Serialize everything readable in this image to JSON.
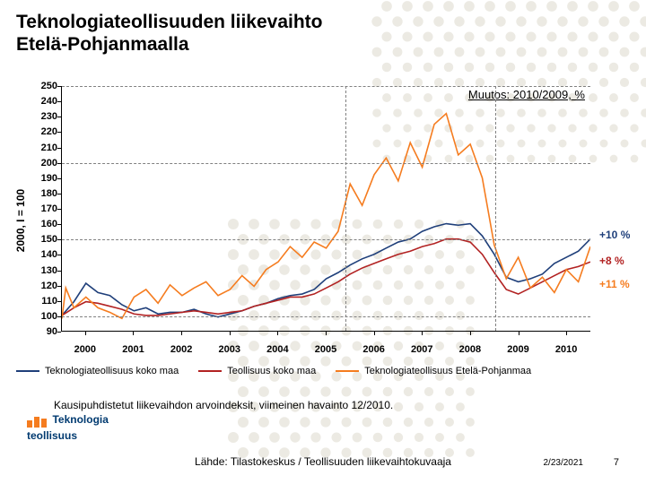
{
  "title_line1": "Teknologiateollisuuden liikevaihto",
  "title_line2": "Etelä-Pohjanmaalla",
  "change_header": "Muutos: 2010/2009, %",
  "y_axis_title": "2000, I = 100",
  "chart": {
    "type": "line",
    "x_start_year": 2000,
    "x_end_year": 2011,
    "x_ticks": [
      "2000",
      "2001",
      "2002",
      "2003",
      "2004",
      "2005",
      "2006",
      "2007",
      "2008",
      "2009",
      "2010"
    ],
    "ylim": [
      90,
      250
    ],
    "y_ticks": [
      90,
      100,
      110,
      120,
      130,
      140,
      150,
      160,
      170,
      180,
      190,
      200,
      210,
      220,
      230,
      240,
      250
    ],
    "hgrid_values": [
      100,
      150,
      200,
      250
    ],
    "vgrid_at_years": [
      2005.9,
      2009.0
    ],
    "background_color": "#ffffff",
    "grid_color": "#808080",
    "axis_color": "#000000",
    "tick_font_size": 11,
    "series": [
      {
        "id": "tekno_koko",
        "label": "Teknologiateollisuus koko maa",
        "color": "#1f3f7a",
        "width": 1.6,
        "annot_label": "+10 %",
        "annot_color": "#1f3f7a",
        "annot_y": 153,
        "data": [
          [
            2000.0,
            100
          ],
          [
            2000.25,
            109
          ],
          [
            2000.5,
            121
          ],
          [
            2000.75,
            115
          ],
          [
            2001.0,
            113
          ],
          [
            2001.25,
            107
          ],
          [
            2001.5,
            103
          ],
          [
            2001.75,
            105
          ],
          [
            2002.0,
            101
          ],
          [
            2002.25,
            102
          ],
          [
            2002.5,
            102
          ],
          [
            2002.75,
            104
          ],
          [
            2003.0,
            101
          ],
          [
            2003.25,
            99
          ],
          [
            2003.5,
            101
          ],
          [
            2003.75,
            103
          ],
          [
            2004.0,
            106
          ],
          [
            2004.25,
            108
          ],
          [
            2004.5,
            111
          ],
          [
            2004.75,
            113
          ],
          [
            2005.0,
            114
          ],
          [
            2005.25,
            117
          ],
          [
            2005.5,
            124
          ],
          [
            2005.75,
            128
          ],
          [
            2006.0,
            133
          ],
          [
            2006.25,
            137
          ],
          [
            2006.5,
            140
          ],
          [
            2006.75,
            144
          ],
          [
            2007.0,
            148
          ],
          [
            2007.25,
            150
          ],
          [
            2007.5,
            155
          ],
          [
            2007.75,
            158
          ],
          [
            2008.0,
            160
          ],
          [
            2008.25,
            159
          ],
          [
            2008.5,
            160
          ],
          [
            2008.75,
            152
          ],
          [
            2009.0,
            140
          ],
          [
            2009.25,
            125
          ],
          [
            2009.5,
            122
          ],
          [
            2009.75,
            124
          ],
          [
            2010.0,
            127
          ],
          [
            2010.25,
            134
          ],
          [
            2010.5,
            138
          ],
          [
            2010.75,
            142
          ],
          [
            2011.0,
            150
          ]
        ]
      },
      {
        "id": "teoll_koko",
        "label": "Teollisuus koko maa",
        "color": "#b22222",
        "width": 1.6,
        "annot_label": "+8 %",
        "annot_color": "#b22222",
        "annot_y": 136,
        "data": [
          [
            2000.0,
            100
          ],
          [
            2000.25,
            105
          ],
          [
            2000.5,
            109
          ],
          [
            2000.75,
            108
          ],
          [
            2001.0,
            106
          ],
          [
            2001.25,
            104
          ],
          [
            2001.5,
            101
          ],
          [
            2001.75,
            100
          ],
          [
            2002.0,
            100
          ],
          [
            2002.25,
            101
          ],
          [
            2002.5,
            102
          ],
          [
            2002.75,
            103
          ],
          [
            2003.0,
            102
          ],
          [
            2003.25,
            101
          ],
          [
            2003.5,
            102
          ],
          [
            2003.75,
            103
          ],
          [
            2004.0,
            106
          ],
          [
            2004.25,
            108
          ],
          [
            2004.5,
            110
          ],
          [
            2004.75,
            112
          ],
          [
            2005.0,
            112
          ],
          [
            2005.25,
            114
          ],
          [
            2005.5,
            118
          ],
          [
            2005.75,
            122
          ],
          [
            2006.0,
            127
          ],
          [
            2006.25,
            131
          ],
          [
            2006.5,
            134
          ],
          [
            2006.75,
            137
          ],
          [
            2007.0,
            140
          ],
          [
            2007.25,
            142
          ],
          [
            2007.5,
            145
          ],
          [
            2007.75,
            147
          ],
          [
            2008.0,
            150
          ],
          [
            2008.25,
            150
          ],
          [
            2008.5,
            148
          ],
          [
            2008.75,
            140
          ],
          [
            2009.0,
            128
          ],
          [
            2009.25,
            117
          ],
          [
            2009.5,
            114
          ],
          [
            2009.75,
            118
          ],
          [
            2010.0,
            122
          ],
          [
            2010.25,
            126
          ],
          [
            2010.5,
            130
          ],
          [
            2010.75,
            132
          ],
          [
            2011.0,
            135
          ]
        ]
      },
      {
        "id": "tekno_ep",
        "label": "Teknologiateollisuus Etelä-Pohjanmaa",
        "color": "#f57c1f",
        "width": 1.6,
        "annot_label": "+11 %",
        "annot_color": "#f57c1f",
        "annot_y": 121,
        "data": [
          [
            2000.0,
            98
          ],
          [
            2000.08,
            118
          ],
          [
            2000.25,
            105
          ],
          [
            2000.5,
            112
          ],
          [
            2000.75,
            105
          ],
          [
            2001.0,
            102
          ],
          [
            2001.25,
            98
          ],
          [
            2001.5,
            112
          ],
          [
            2001.75,
            117
          ],
          [
            2002.0,
            108
          ],
          [
            2002.25,
            120
          ],
          [
            2002.5,
            113
          ],
          [
            2002.75,
            118
          ],
          [
            2003.0,
            122
          ],
          [
            2003.25,
            113
          ],
          [
            2003.5,
            117
          ],
          [
            2003.75,
            126
          ],
          [
            2004.0,
            119
          ],
          [
            2004.25,
            130
          ],
          [
            2004.5,
            135
          ],
          [
            2004.75,
            145
          ],
          [
            2005.0,
            138
          ],
          [
            2005.25,
            148
          ],
          [
            2005.5,
            144
          ],
          [
            2005.75,
            155
          ],
          [
            2006.0,
            186
          ],
          [
            2006.25,
            172
          ],
          [
            2006.5,
            192
          ],
          [
            2006.75,
            203
          ],
          [
            2007.0,
            188
          ],
          [
            2007.25,
            213
          ],
          [
            2007.5,
            197
          ],
          [
            2007.75,
            225
          ],
          [
            2008.0,
            232
          ],
          [
            2008.25,
            205
          ],
          [
            2008.5,
            212
          ],
          [
            2008.75,
            190
          ],
          [
            2009.0,
            146
          ],
          [
            2009.25,
            124
          ],
          [
            2009.5,
            138
          ],
          [
            2009.75,
            118
          ],
          [
            2010.0,
            125
          ],
          [
            2010.25,
            115
          ],
          [
            2010.5,
            130
          ],
          [
            2010.75,
            122
          ],
          [
            2011.0,
            145
          ]
        ]
      }
    ]
  },
  "legend_items": [
    {
      "label": "Teknologiateollisuus koko maa",
      "color": "#1f3f7a"
    },
    {
      "label": "Teollisuus koko maa",
      "color": "#b22222"
    },
    {
      "label": "Teknologiateollisuus Etelä-Pohjanmaa",
      "color": "#f57c1f"
    }
  ],
  "footnote": "Kausipuhdistetut liikevaihdon arvoindeksit, viimeinen havainto 12/2010.",
  "logo_text_1": "Teknologia",
  "logo_text_2": "teollisuus",
  "logo_color_primary": "#003a70",
  "logo_color_accent": "#f57c1f",
  "source_text": "Lähde: Tilastokeskus / Teollisuuden liikevaihtokuvaaja",
  "footer_date": "2/23/2021",
  "page_number": "7",
  "bg_dot_color": "#eceae3"
}
